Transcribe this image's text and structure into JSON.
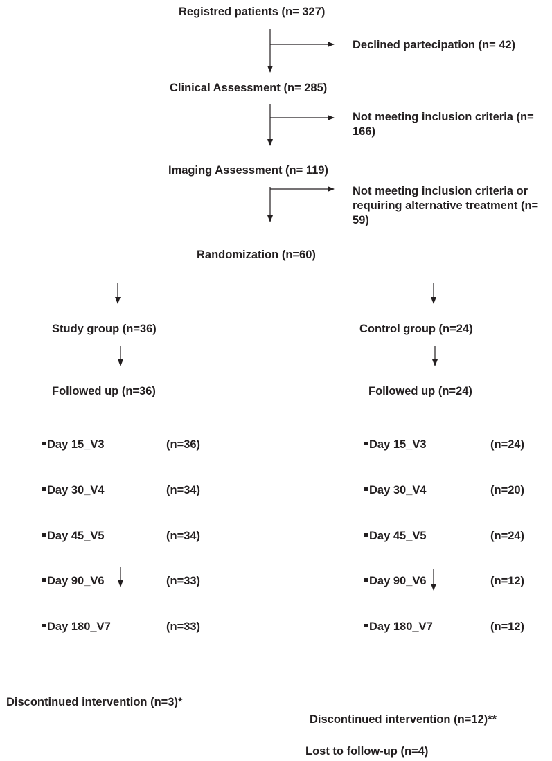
{
  "top": {
    "registered": "Registred patients (n= 327)",
    "declined": "Declined partecipation (n= 42)",
    "clinical": "Clinical Assessment (n= 285)",
    "not_meeting_1": "Not meeting inclusion criteria (n= 166)",
    "imaging": "Imaging Assessment (n= 119)",
    "not_meeting_2": "Not meeting inclusion criteria or requiring alternative treatment (n= 59)",
    "randomization": "Randomization (n=60)"
  },
  "study": {
    "group": "Study group (n=36)",
    "followed": "Followed up (n=36)",
    "visits": [
      {
        "label": "Day 15_V3",
        "n": "(n=36)"
      },
      {
        "label": "Day 30_V4",
        "n": "(n=34)"
      },
      {
        "label": "Day 45_V5",
        "n": "(n=34)"
      },
      {
        "label": "Day 90_V6",
        "n": "(n=33)"
      },
      {
        "label": "Day 180_V7",
        "n": "(n=33)"
      }
    ],
    "discontinued": "Discontinued intervention (n=3)*"
  },
  "control": {
    "group": "Control group (n=24)",
    "followed": "Followed up (n=24)",
    "visits": [
      {
        "label": "Day 15_V3",
        "n": "(n=24)"
      },
      {
        "label": "Day 30_V4",
        "n": "(n=20)"
      },
      {
        "label": "Day 45_V5",
        "n": "(n=24)"
      },
      {
        "label": "Day 90_V6",
        "n": "(n=12)"
      },
      {
        "label": "Day 180_V7",
        "n": "(n=12)"
      }
    ],
    "discontinued": "Discontinued intervention (n=12)**",
    "lost": "Lost to follow-up (n=4)"
  }
}
